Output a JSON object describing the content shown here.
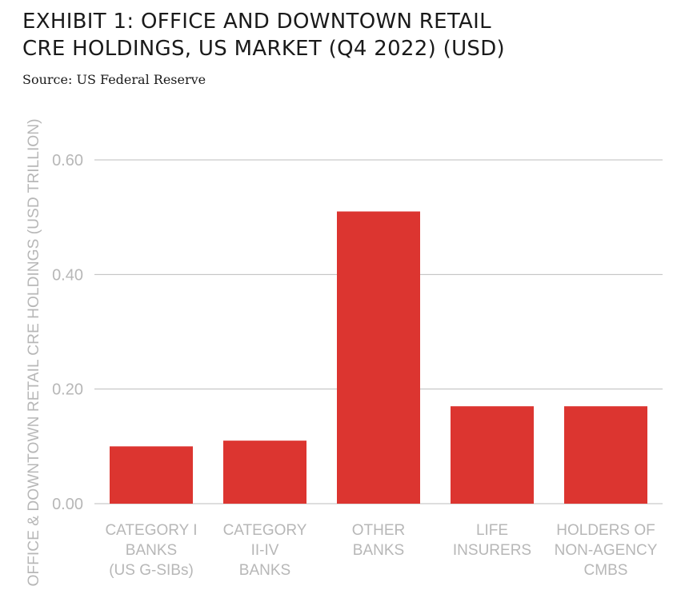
{
  "title_lines": [
    "EXHIBIT 1: OFFICE AND DOWNTOWN RETAIL",
    "CRE HOLDINGS, US MARKET (Q4 2022) (USD)"
  ],
  "source": "Source: US Federal Reserve",
  "colors": {
    "bar": "#dc3530",
    "grid": "#bdbdbd",
    "label": "#b7b7b7"
  },
  "chart_data": {
    "type": "bar",
    "title": "EXHIBIT 1: OFFICE AND DOWNTOWN RETAIL CRE HOLDINGS, US MARKET (Q4 2022) (USD)",
    "ylabel": "OFFICE & DOWNTOWN RETAIL CRE HOLDINGS (USD TRILLION)",
    "xlabel": "",
    "ylim": [
      0,
      0.6
    ],
    "yticks": [
      "0.00",
      "0.20",
      "0.40",
      "0.60"
    ],
    "ytick_values": [
      0,
      0.2,
      0.4,
      0.6
    ],
    "grid": true,
    "categories": [
      [
        "CATEGORY I",
        "BANKS",
        "(US G-SIBs)"
      ],
      [
        "CATEGORY",
        "II-IV",
        "BANKS"
      ],
      [
        "OTHER",
        "BANKS"
      ],
      [
        "LIFE",
        "INSURERS"
      ],
      [
        "HOLDERS OF",
        "NON-AGENCY",
        "CMBS"
      ]
    ],
    "values": [
      0.1,
      0.11,
      0.51,
      0.17,
      0.17
    ]
  }
}
